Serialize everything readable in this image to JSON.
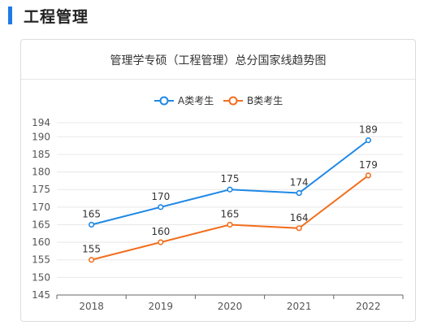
{
  "section": {
    "title": "工程管理"
  },
  "chart_data": {
    "type": "line",
    "title": "管理学专硕（工程管理）总分国家线趋势图",
    "categories": [
      "2018",
      "2019",
      "2020",
      "2021",
      "2022"
    ],
    "series": [
      {
        "name": "A类考生",
        "values": [
          165,
          170,
          175,
          174,
          189
        ],
        "color": "#1e88e5"
      },
      {
        "name": "B类考生",
        "values": [
          155,
          160,
          165,
          164,
          179
        ],
        "color": "#f26f1e"
      }
    ],
    "yticks": [
      145,
      150,
      155,
      160,
      165,
      170,
      175,
      180,
      185,
      190,
      194
    ],
    "ylim": [
      145,
      194
    ],
    "grid": true,
    "legend": "top-center"
  }
}
